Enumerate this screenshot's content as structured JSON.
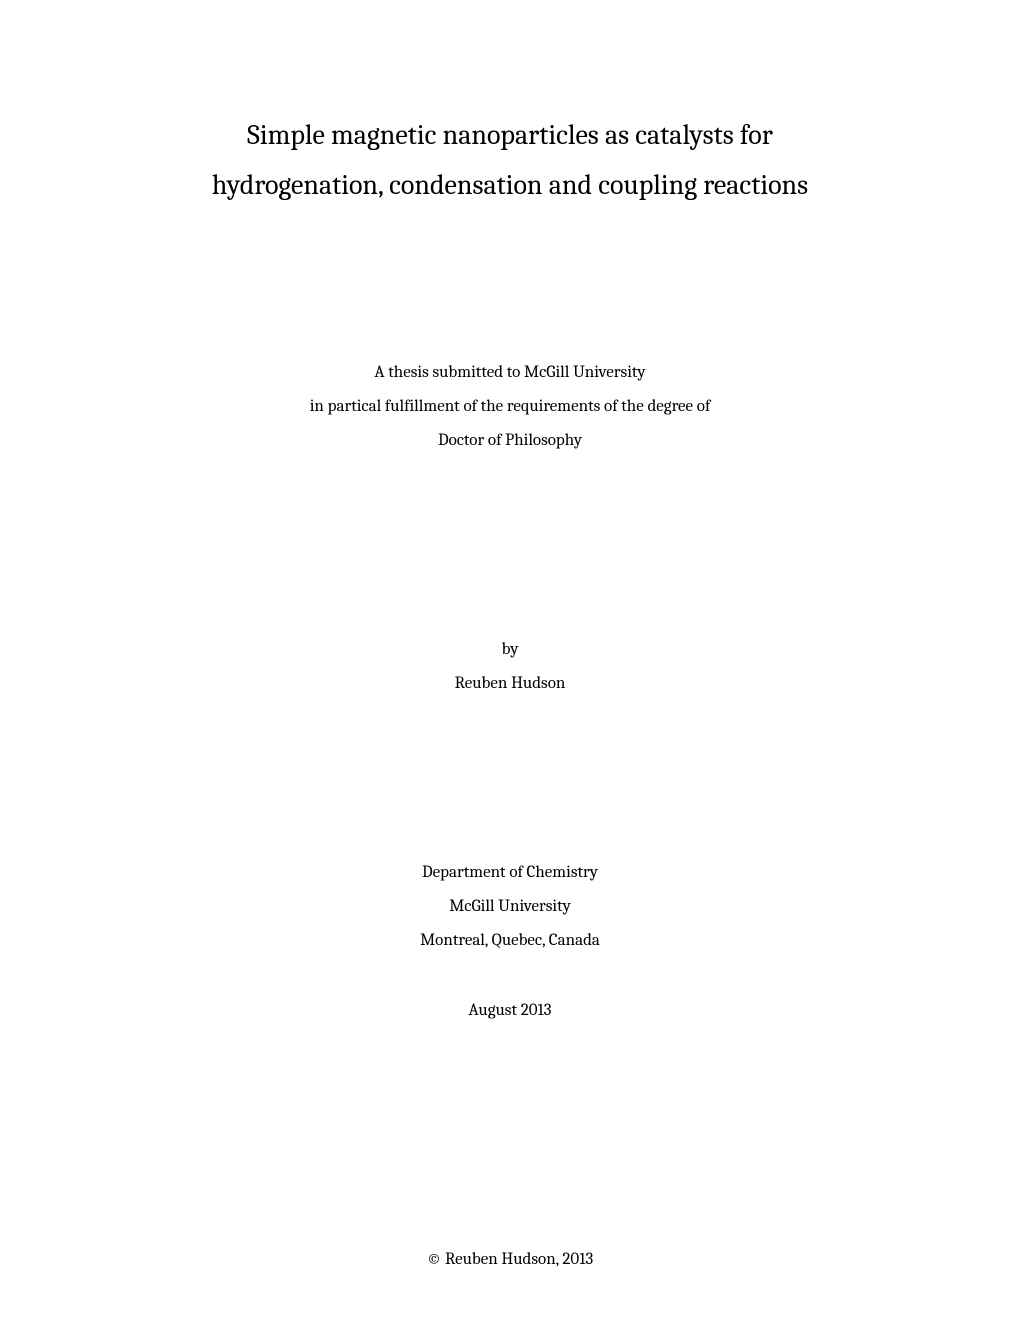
{
  "title": {
    "line1": "Simple magnetic nanoparticles as catalysts for",
    "line2": "hydrogenation, condensation and coupling reactions"
  },
  "submission": {
    "line1": "A thesis submitted to McGill University",
    "line2": "in partical fulfillment of the requirements of the degree of",
    "line3": "Doctor of Philosophy"
  },
  "author": {
    "by": "by",
    "name": "Reuben Hudson"
  },
  "department": {
    "line1": "Department of Chemistry",
    "line2": "McGill University",
    "line3": "Montreal, Quebec, Canada"
  },
  "date": "August 2013",
  "copyright": "© Reuben Hudson, 2013"
}
